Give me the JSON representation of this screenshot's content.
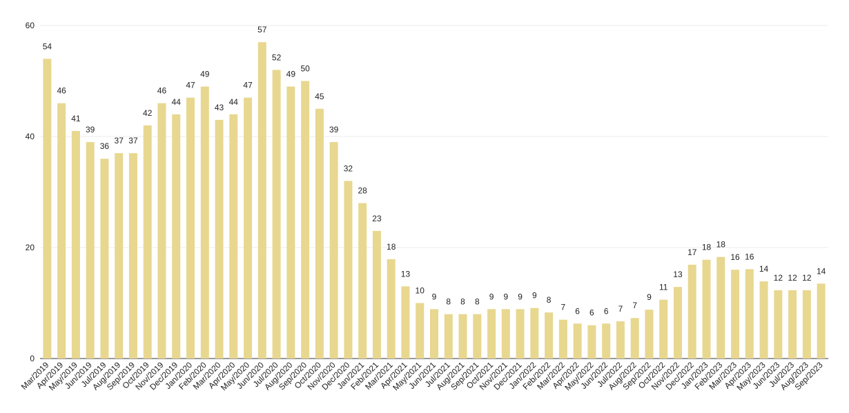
{
  "chart_data": {
    "type": "bar",
    "categories": [
      "Mar/2019",
      "Apr/2019",
      "May/2019",
      "Jun/2019",
      "Jul/2019",
      "Aug/2019",
      "Sep/2019",
      "Oct/2019",
      "Nov/2019",
      "Dec/2019",
      "Jan/2020",
      "Feb/2020",
      "Mar/2020",
      "Apr/2020",
      "May/2020",
      "Jun/2020",
      "Jul/2020",
      "Aug/2020",
      "Sep/2020",
      "Oct/2020",
      "Nov/2020",
      "Dec/2020",
      "Jan/2021",
      "Feb/2021",
      "Mar/2021",
      "Apr/2021",
      "May/2021",
      "Jun/2021",
      "Jul/2021",
      "Aug/2021",
      "Sep/2021",
      "Oct/2021",
      "Nov/2021",
      "Dec/2021",
      "Jan/2022",
      "Feb/2022",
      "Mar/2022",
      "Apr/2022",
      "May/2022",
      "Jun/2022",
      "Jul/2022",
      "Aug/2022",
      "Sep/2022",
      "Oct/2022",
      "Nov/2022",
      "Dec/2022",
      "Jan/2023",
      "Feb/2023",
      "Mar/2023",
      "Apr/2023",
      "May/2023",
      "Jun/2023",
      "Jul/2023",
      "Aug/2023",
      "Sep/2023"
    ],
    "values": [
      54,
      46,
      41,
      39,
      36,
      37,
      37,
      42,
      46,
      44,
      47,
      49,
      43,
      44,
      47,
      57,
      52,
      49,
      50,
      45,
      39,
      32,
      28,
      23,
      17.9,
      13,
      10,
      8.9,
      8,
      8,
      8,
      8.9,
      8.9,
      8.9,
      9.1,
      8.3,
      7,
      6.3,
      6,
      6.3,
      6.7,
      7.3,
      8.8,
      10.6,
      12.9,
      16.9,
      17.8,
      18.3,
      16,
      16.1,
      13.9,
      12.3,
      12.3,
      12.3,
      13.5
    ],
    "value_labels": [
      "54",
      "46",
      "41",
      "39",
      "36",
      "37",
      "37",
      "42",
      "46",
      "44",
      "47",
      "49",
      "43",
      "44",
      "47",
      "57",
      "52",
      "49",
      "50",
      "45",
      "39",
      "32",
      "28",
      "23",
      "18",
      "13",
      "10",
      "9",
      "8",
      "8",
      "8",
      "9",
      "9",
      "9",
      "9",
      "8",
      "7",
      "6",
      "6",
      "6",
      "7",
      "7",
      "9",
      "11",
      "13",
      "17",
      "18",
      "18",
      "16",
      "16",
      "14",
      "12",
      "12",
      "12",
      "14"
    ],
    "color": "#e8d78f",
    "ylim": [
      0,
      60
    ],
    "yticks": [
      0,
      20,
      40,
      60
    ],
    "grid": true
  }
}
